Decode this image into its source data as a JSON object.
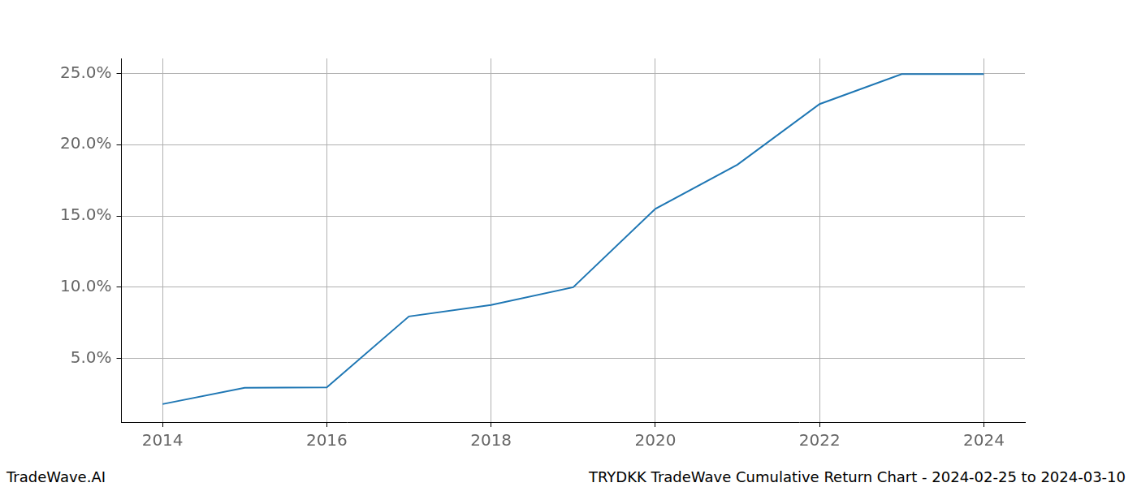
{
  "chart_data": {
    "type": "line",
    "title": "TRYDKK TradeWave Cumulative Return Chart - 2024-02-25 to 2024-03-10",
    "annotations": [
      "TradeWave.AI"
    ],
    "x": [
      2014,
      2015,
      2016,
      2017,
      2018,
      2019,
      2020,
      2021,
      2022,
      2023,
      2024
    ],
    "values": [
      1.8,
      2.95,
      2.97,
      7.95,
      8.75,
      10.0,
      15.5,
      18.6,
      22.85,
      24.95,
      24.95
    ],
    "color": "#1f77b4",
    "xlim": [
      2013.5,
      2024.5
    ],
    "xticks": [
      2014,
      2016,
      2018,
      2020,
      2022,
      2024
    ],
    "ylim": [
      0.54,
      26.05
    ],
    "yticks": [
      {
        "value": 5,
        "label": "5.0%"
      },
      {
        "value": 10,
        "label": "10.0%"
      },
      {
        "value": 15,
        "label": "15.0%"
      },
      {
        "value": 20,
        "label": "20.0%"
      },
      {
        "value": 25,
        "label": "25.0%"
      }
    ],
    "grid": true
  }
}
